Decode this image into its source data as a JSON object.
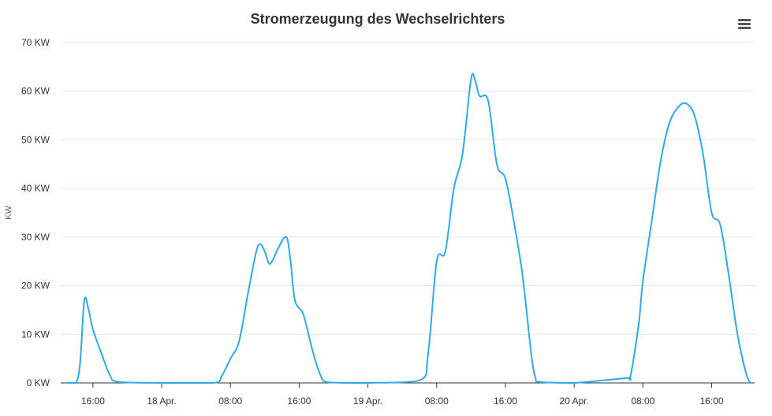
{
  "menu": {
    "icon": "hamburger-menu-icon"
  },
  "chart_data": {
    "type": "line",
    "title": "Stromerzeugung des Wechselrichters",
    "ylabel": "KW",
    "xlabel": "",
    "ylim": [
      0,
      70
    ],
    "yticks": [
      {
        "value": 0,
        "label": "0 KW"
      },
      {
        "value": 10,
        "label": "10 KW"
      },
      {
        "value": 20,
        "label": "20 KW"
      },
      {
        "value": 30,
        "label": "30 KW"
      },
      {
        "value": 40,
        "label": "40 KW"
      },
      {
        "value": 50,
        "label": "50 KW"
      },
      {
        "value": 60,
        "label": "60 KW"
      },
      {
        "value": 70,
        "label": "70 KW"
      }
    ],
    "xlim": [
      "2023-04-17T12:15",
      "2023-04-20T21:00"
    ],
    "xticks": [
      {
        "value": "2023-04-17T16:00",
        "label": "16:00"
      },
      {
        "value": "2023-04-18T00:00",
        "label": "18 Apr."
      },
      {
        "value": "2023-04-18T08:00",
        "label": "08:00"
      },
      {
        "value": "2023-04-18T16:00",
        "label": "16:00"
      },
      {
        "value": "2023-04-19T00:00",
        "label": "19 Apr."
      },
      {
        "value": "2023-04-19T08:00",
        "label": "08:00"
      },
      {
        "value": "2023-04-19T16:00",
        "label": "16:00"
      },
      {
        "value": "2023-04-20T00:00",
        "label": "20 Apr."
      },
      {
        "value": "2023-04-20T08:00",
        "label": "08:00"
      },
      {
        "value": "2023-04-20T16:00",
        "label": "16:00"
      }
    ],
    "grid": true,
    "legend": "none",
    "colors": {
      "series": "#2eaaec",
      "grid": "#e6e6e6",
      "axis": "#333333"
    },
    "series": [
      {
        "points": [
          [
            "2023-04-17T13:00",
            0
          ],
          [
            "2023-04-17T14:00",
            0
          ],
          [
            "2023-04-17T14:30",
            4
          ],
          [
            "2023-04-17T15:00",
            17
          ],
          [
            "2023-04-17T15:30",
            15
          ],
          [
            "2023-04-17T16:00",
            11
          ],
          [
            "2023-04-17T17:00",
            6
          ],
          [
            "2023-04-17T18:00",
            1.5
          ],
          [
            "2023-04-17T19:00",
            0.2
          ],
          [
            "2023-04-18T00:00",
            0
          ],
          [
            "2023-04-18T06:00",
            0
          ],
          [
            "2023-04-18T07:00",
            1.5
          ],
          [
            "2023-04-18T08:00",
            5
          ],
          [
            "2023-04-18T09:00",
            8.5
          ],
          [
            "2023-04-18T10:00",
            18
          ],
          [
            "2023-04-18T11:00",
            27
          ],
          [
            "2023-04-18T11:30",
            28.5
          ],
          [
            "2023-04-18T12:00",
            27
          ],
          [
            "2023-04-18T12:30",
            24.5
          ],
          [
            "2023-04-18T13:00",
            25.5
          ],
          [
            "2023-04-18T13:30",
            27.5
          ],
          [
            "2023-04-18T14:30",
            30
          ],
          [
            "2023-04-18T15:00",
            25
          ],
          [
            "2023-04-18T15:30",
            17
          ],
          [
            "2023-04-18T16:30",
            14
          ],
          [
            "2023-04-18T17:30",
            7
          ],
          [
            "2023-04-18T18:30",
            1.5
          ],
          [
            "2023-04-18T19:30",
            0.1
          ],
          [
            "2023-04-19T00:00",
            0
          ],
          [
            "2023-04-19T06:00",
            0.5
          ],
          [
            "2023-04-19T07:00",
            6
          ],
          [
            "2023-04-19T08:00",
            25
          ],
          [
            "2023-04-19T09:00",
            27
          ],
          [
            "2023-04-19T10:00",
            40
          ],
          [
            "2023-04-19T11:00",
            47
          ],
          [
            "2023-04-19T12:00",
            62.5
          ],
          [
            "2023-04-19T12:30",
            62
          ],
          [
            "2023-04-19T13:00",
            59
          ],
          [
            "2023-04-19T14:00",
            58
          ],
          [
            "2023-04-19T15:00",
            45
          ],
          [
            "2023-04-19T16:00",
            42
          ],
          [
            "2023-04-19T17:00",
            33
          ],
          [
            "2023-04-19T18:00",
            22
          ],
          [
            "2023-04-19T19:00",
            6
          ],
          [
            "2023-04-19T19:30",
            1
          ],
          [
            "2023-04-19T20:00",
            0.2
          ],
          [
            "2023-04-20T00:00",
            0
          ],
          [
            "2023-04-20T06:00",
            1
          ],
          [
            "2023-04-20T06:30",
            1
          ],
          [
            "2023-04-20T07:30",
            12
          ],
          [
            "2023-04-20T08:00",
            21
          ],
          [
            "2023-04-20T09:00",
            33
          ],
          [
            "2023-04-20T10:00",
            45
          ],
          [
            "2023-04-20T11:00",
            53
          ],
          [
            "2023-04-20T12:00",
            56.5
          ],
          [
            "2023-04-20T13:00",
            57.5
          ],
          [
            "2023-04-20T14:00",
            55
          ],
          [
            "2023-04-20T15:00",
            47
          ],
          [
            "2023-04-20T16:00",
            35
          ],
          [
            "2023-04-20T17:00",
            32.5
          ],
          [
            "2023-04-20T18:00",
            22
          ],
          [
            "2023-04-20T19:00",
            10
          ],
          [
            "2023-04-20T20:00",
            2
          ],
          [
            "2023-04-20T20:30",
            0
          ]
        ]
      }
    ]
  }
}
